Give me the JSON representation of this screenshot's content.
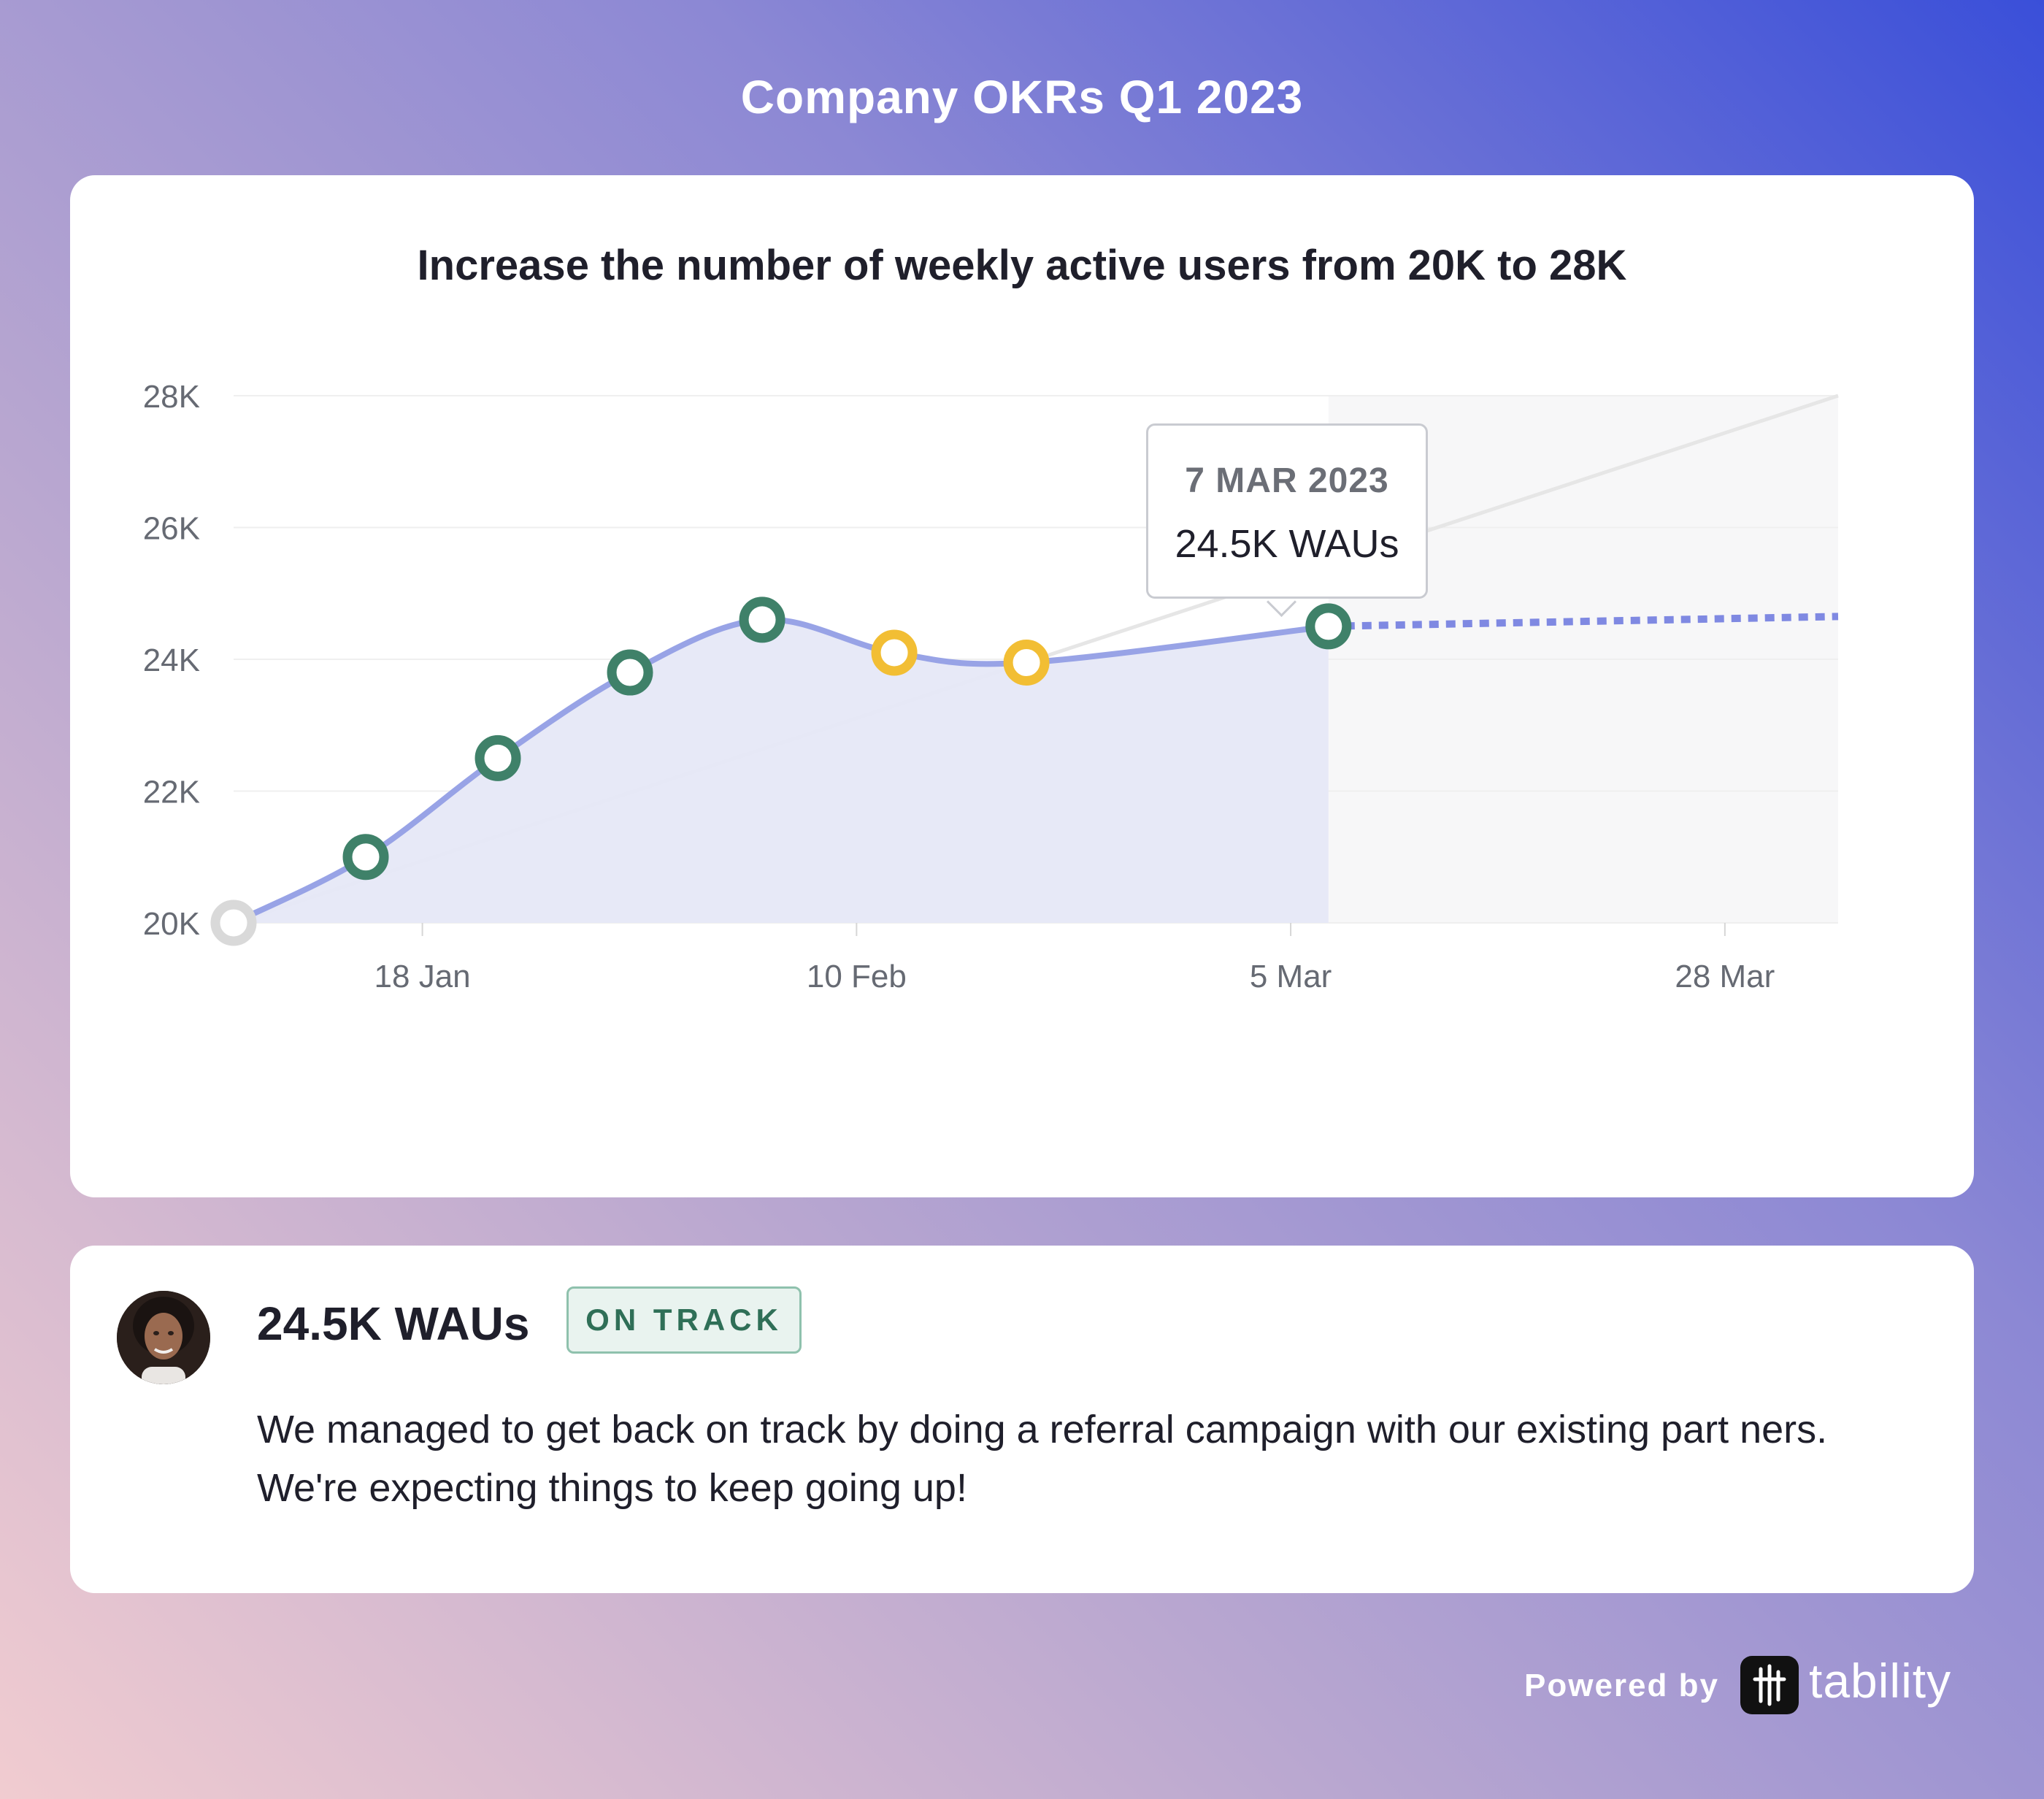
{
  "header": {
    "title": "Company OKRs Q1 2023"
  },
  "chart_card": {
    "title": "Increase the number of weekly active users from 20K to 28K",
    "tooltip": {
      "date": "7 MAR 2023",
      "value": "24.5K WAUs"
    }
  },
  "chart_data": {
    "type": "line",
    "title": "Increase the number of weekly active users from 20K to 28K",
    "x_axis": {
      "type": "date",
      "range": [
        "2023-01-08",
        "2023-04-03"
      ],
      "tick_labels": [
        "18 Jan",
        "10 Feb",
        "5 Mar",
        "28 Mar"
      ]
    },
    "y_axis": {
      "range": [
        20000,
        28000
      ],
      "tick_labels": [
        "20K",
        "22K",
        "24K",
        "26K",
        "28K"
      ]
    },
    "grid": true,
    "series": [
      {
        "role": "actual",
        "color": "#98a3e6",
        "points": [
          {
            "x": "2023-01-08",
            "y": 20000,
            "status": "start",
            "color": "#d9d9d9"
          },
          {
            "x": "2023-01-15",
            "y": 21000,
            "status": "on-track",
            "color": "#3f8169"
          },
          {
            "x": "2023-01-22",
            "y": 22500,
            "status": "on-track",
            "color": "#3f8169"
          },
          {
            "x": "2023-01-29",
            "y": 23800,
            "status": "on-track",
            "color": "#3f8169"
          },
          {
            "x": "2023-02-05",
            "y": 24600,
            "status": "on-track",
            "color": "#3f8169"
          },
          {
            "x": "2023-02-12",
            "y": 24100,
            "status": "at-risk",
            "color": "#f2be34"
          },
          {
            "x": "2023-02-19",
            "y": 23950,
            "status": "at-risk",
            "color": "#f2be34"
          },
          {
            "x": "2023-03-07",
            "y": 24500,
            "status": "on-track",
            "color": "#3f8169"
          }
        ]
      },
      {
        "role": "projection",
        "style": "dotted",
        "color": "#7f89e2",
        "points": [
          {
            "x": "2023-03-07",
            "y": 24500
          },
          {
            "x": "2023-04-03",
            "y": 24650
          }
        ]
      },
      {
        "role": "target",
        "color": "#e6e6e6",
        "points": [
          {
            "x": "2023-01-08",
            "y": 20000
          },
          {
            "x": "2023-04-03",
            "y": 28000
          }
        ]
      }
    ]
  },
  "update": {
    "title": "24.5K WAUs",
    "status": "ON TRACK",
    "text": "We managed to get back on track by doing a referral campaign with our existing part ners. We're expecting things to keep going up!"
  },
  "footer": {
    "powered_by": "Powered by",
    "brand": "tability"
  }
}
